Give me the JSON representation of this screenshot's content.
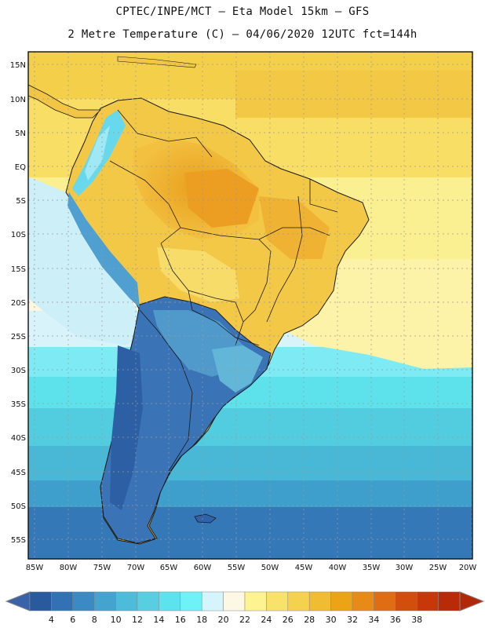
{
  "header": {
    "line1": "CPTEC/INPE/MCT –  Eta Model 15km – GFS",
    "line2": "2 Metre Temperature (C) – 04/06/2020 12UTC fct=144h"
  },
  "map": {
    "lat_labels": [
      "15N",
      "10N",
      "5N",
      "EQ",
      "5S",
      "10S",
      "15S",
      "20S",
      "25S",
      "30S",
      "35S",
      "40S",
      "45S",
      "50S",
      "55S"
    ],
    "lon_labels": [
      "85W",
      "80W",
      "75W",
      "70W",
      "65W",
      "60W",
      "55W",
      "50W",
      "45W",
      "40W",
      "35W",
      "30W",
      "25W",
      "20W"
    ],
    "lat_range": [
      -58,
      16.5
    ],
    "lon_range": [
      -86.5,
      -20.5
    ],
    "grid": true,
    "projection": "lat-lon"
  },
  "colorbar": {
    "labels": [
      "4",
      "6",
      "8",
      "10",
      "12",
      "14",
      "16",
      "18",
      "20",
      "22",
      "24",
      "26",
      "28",
      "30",
      "32",
      "34",
      "36",
      "38"
    ],
    "colors": [
      "#2a5a9e",
      "#3272b4",
      "#3b8ac4",
      "#45a3d0",
      "#4dbcd8",
      "#57cfe0",
      "#5de3ee",
      "#6ef2f8",
      "#d6f4fb",
      "#fdf8e4",
      "#fdf391",
      "#f8e26a",
      "#f5d24e",
      "#f0bc32",
      "#eca417",
      "#e88a17",
      "#e06c14",
      "#d24e0c",
      "#c6380a",
      "#b82a08"
    ],
    "under_color": "#3a62a8",
    "over_color": "#b02806"
  }
}
